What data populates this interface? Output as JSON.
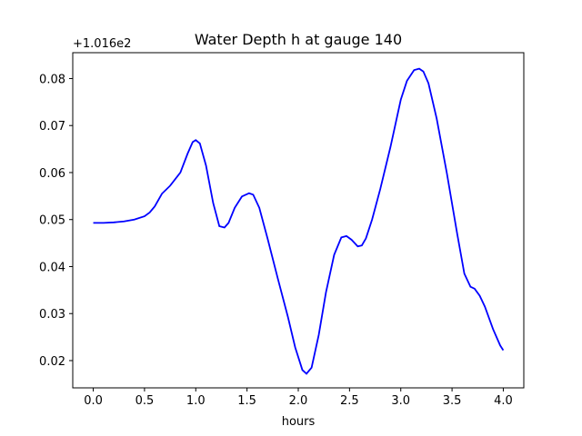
{
  "chart_data": {
    "type": "line",
    "title": "Water Depth h at gauge 140",
    "xlabel": "hours",
    "ylabel": "",
    "offset_label": "+1.016e2",
    "xlim": [
      -0.2,
      4.2
    ],
    "ylim": [
      0.0142,
      0.0855
    ],
    "x_ticks": [
      0.0,
      0.5,
      1.0,
      1.5,
      2.0,
      2.5,
      3.0,
      3.5,
      4.0
    ],
    "x_tick_labels": [
      "0.0",
      "0.5",
      "1.0",
      "1.5",
      "2.0",
      "2.5",
      "3.0",
      "3.5",
      "4.0"
    ],
    "y_ticks": [
      0.02,
      0.03,
      0.04,
      0.05,
      0.06,
      0.07,
      0.08
    ],
    "y_tick_labels": [
      "0.02",
      "0.03",
      "0.04",
      "0.05",
      "0.06",
      "0.07",
      "0.08"
    ],
    "grid": false,
    "series": [
      {
        "color": "#0000ff",
        "x": [
          0.0,
          0.1,
          0.2,
          0.3,
          0.4,
          0.5,
          0.55,
          0.6,
          0.67,
          0.75,
          0.85,
          0.92,
          0.97,
          1.0,
          1.04,
          1.1,
          1.17,
          1.23,
          1.28,
          1.32,
          1.38,
          1.45,
          1.52,
          1.56,
          1.62,
          1.7,
          1.8,
          1.9,
          1.97,
          2.04,
          2.08,
          2.13,
          2.2,
          2.27,
          2.35,
          2.42,
          2.47,
          2.52,
          2.58,
          2.62,
          2.66,
          2.72,
          2.8,
          2.9,
          3.0,
          3.06,
          3.13,
          3.18,
          3.22,
          3.27,
          3.35,
          3.45,
          3.55,
          3.62,
          3.68,
          3.72,
          3.77,
          3.82,
          3.9,
          3.97,
          4.0
        ],
        "y": [
          0.0493,
          0.0493,
          0.0494,
          0.0496,
          0.05,
          0.0507,
          0.0515,
          0.0528,
          0.0555,
          0.0572,
          0.06,
          0.064,
          0.0665,
          0.0669,
          0.0662,
          0.0615,
          0.0535,
          0.0486,
          0.0483,
          0.0493,
          0.0525,
          0.0549,
          0.0556,
          0.0553,
          0.0525,
          0.046,
          0.0375,
          0.0292,
          0.0228,
          0.018,
          0.0172,
          0.0185,
          0.0255,
          0.0345,
          0.0425,
          0.0462,
          0.0465,
          0.0457,
          0.0443,
          0.0445,
          0.046,
          0.05,
          0.0565,
          0.0655,
          0.0755,
          0.0795,
          0.0818,
          0.0821,
          0.0815,
          0.079,
          0.0715,
          0.0598,
          0.047,
          0.0385,
          0.0357,
          0.0353,
          0.0338,
          0.0315,
          0.0267,
          0.0232,
          0.0222
        ]
      }
    ]
  }
}
